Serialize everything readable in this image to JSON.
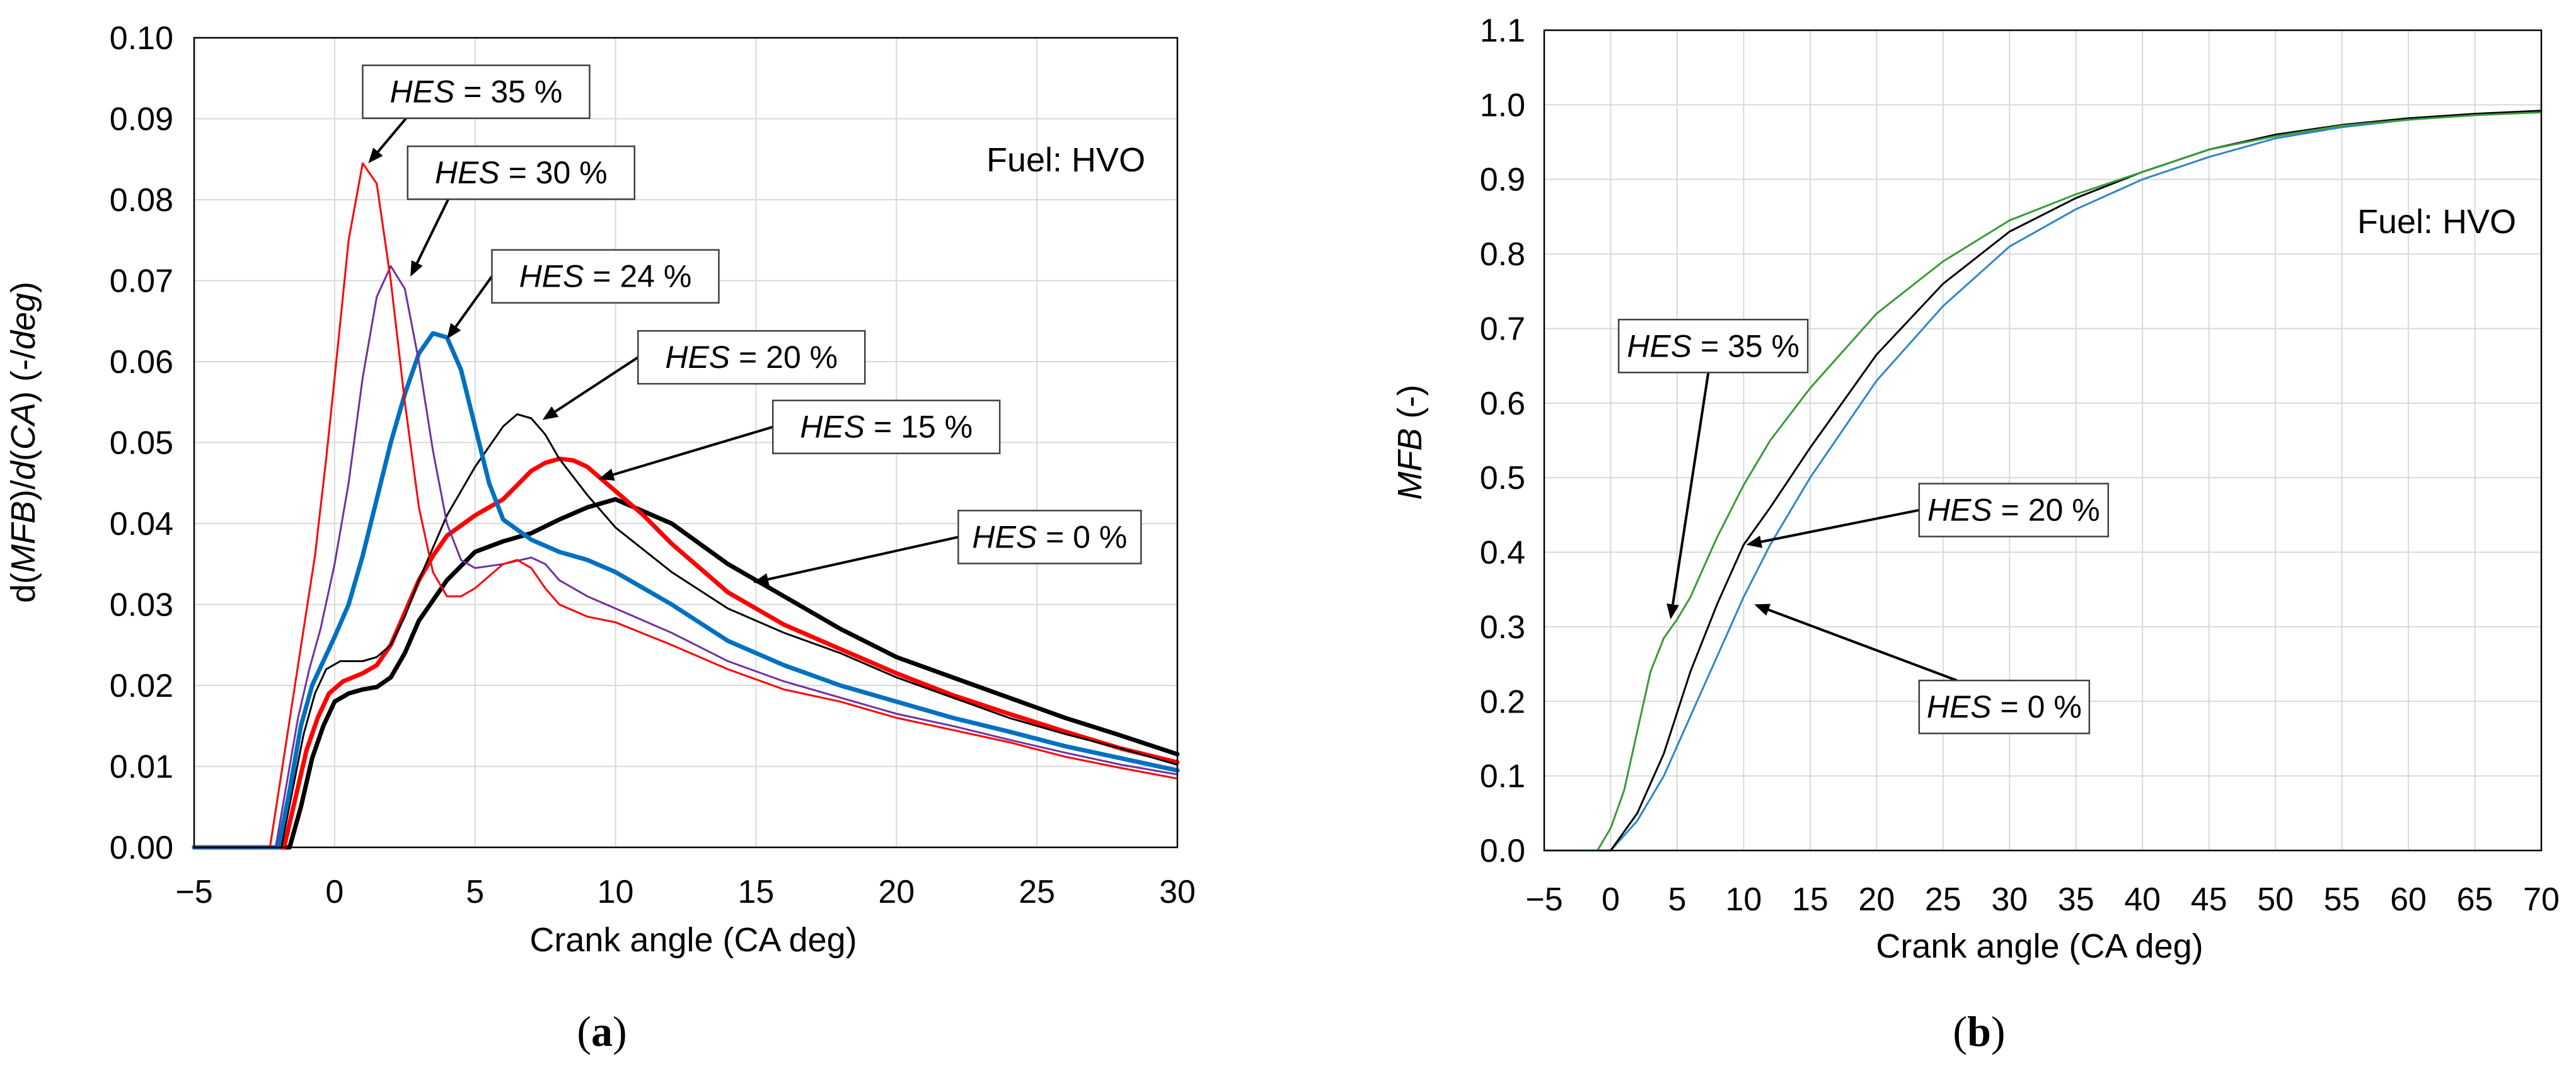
{
  "chart_data": [
    {
      "panel_label": "(a)",
      "type": "line",
      "xlabel": "Crank angle (CA deg)",
      "ylabel": "d(MFB)/d(CA)  (-/deg)",
      "xlim": [
        -5,
        30
      ],
      "ylim": [
        0,
        0.1
      ],
      "xticks": [
        -5,
        0,
        5,
        10,
        15,
        20,
        25,
        30
      ],
      "yticks": [
        0,
        0.01,
        0.02,
        0.03,
        0.04,
        0.05,
        0.06,
        0.07,
        0.08,
        0.09,
        0.1
      ],
      "ytick_labels": [
        "0.00",
        "0.01",
        "0.02",
        "0.03",
        "0.04",
        "0.05",
        "0.06",
        "0.07",
        "0.08",
        "0.09",
        "0.10"
      ],
      "xtick_labels": [
        "−5",
        "0",
        "5",
        "10",
        "15",
        "20",
        "25",
        "30"
      ],
      "text_note": "Fuel: HVO",
      "series": [
        {
          "name": "HES = 0 %",
          "color": "#000000",
          "width": 7,
          "x": [
            -5,
            -1.6,
            -1.2,
            -0.8,
            -0.4,
            0,
            0.5,
            1,
            1.5,
            2,
            2.5,
            3,
            4,
            5,
            6,
            7,
            8,
            9,
            10,
            12,
            14,
            16,
            18,
            20,
            22,
            24,
            26,
            28,
            30
          ],
          "y": [
            0,
            0,
            0.005,
            0.011,
            0.015,
            0.018,
            0.019,
            0.0195,
            0.0198,
            0.021,
            0.024,
            0.028,
            0.033,
            0.0365,
            0.0378,
            0.0388,
            0.0405,
            0.042,
            0.043,
            0.04,
            0.035,
            0.031,
            0.027,
            0.0235,
            0.021,
            0.0185,
            0.016,
            0.0138,
            0.0115
          ]
        },
        {
          "name": "HES = 15 %",
          "color": "#ff0000",
          "width": 7,
          "x": [
            -5,
            -1.8,
            -1.4,
            -1,
            -0.6,
            -0.2,
            0.3,
            1,
            1.5,
            2,
            2.5,
            3,
            3.5,
            4,
            5,
            6,
            7,
            7.5,
            8,
            8.5,
            9,
            10,
            11,
            12,
            14,
            16,
            18,
            20,
            22,
            24,
            26,
            28,
            30
          ],
          "y": [
            0,
            0,
            0.006,
            0.012,
            0.016,
            0.019,
            0.0205,
            0.0215,
            0.0225,
            0.025,
            0.029,
            0.033,
            0.036,
            0.0385,
            0.041,
            0.043,
            0.0465,
            0.0475,
            0.048,
            0.0478,
            0.047,
            0.044,
            0.041,
            0.0375,
            0.0315,
            0.0275,
            0.0245,
            0.0215,
            0.0188,
            0.0165,
            0.0143,
            0.0122,
            0.0105
          ]
        },
        {
          "name": "HES = 20 %",
          "color": "#000000",
          "width": 3,
          "x": [
            -5,
            -1.9,
            -1.5,
            -1.1,
            -0.7,
            -0.3,
            0.2,
            1,
            1.5,
            2,
            2.5,
            3,
            4,
            5,
            6,
            6.5,
            7,
            7.5,
            8,
            9,
            10,
            12,
            14,
            16,
            18,
            20,
            22,
            24,
            26,
            28,
            30
          ],
          "y": [
            0,
            0,
            0.007,
            0.014,
            0.019,
            0.022,
            0.023,
            0.023,
            0.0235,
            0.025,
            0.0285,
            0.033,
            0.041,
            0.047,
            0.052,
            0.0535,
            0.053,
            0.051,
            0.048,
            0.0435,
            0.0395,
            0.034,
            0.0295,
            0.0265,
            0.024,
            0.021,
            0.0185,
            0.016,
            0.014,
            0.0122,
            0.0102
          ]
        },
        {
          "name": "HES = 24 %",
          "color": "#0070c0",
          "width": 7,
          "x": [
            -5,
            -2,
            -1.6,
            -1.2,
            -0.8,
            -0.4,
            0,
            0.5,
            1,
            1.5,
            2,
            2.5,
            3,
            3.5,
            4,
            4.5,
            5,
            5.5,
            6,
            7,
            8,
            9,
            10,
            12,
            14,
            16,
            18,
            20,
            22,
            24,
            26,
            28,
            30
          ],
          "y": [
            0,
            0,
            0.007,
            0.015,
            0.02,
            0.023,
            0.026,
            0.03,
            0.036,
            0.043,
            0.05,
            0.056,
            0.061,
            0.0635,
            0.063,
            0.059,
            0.052,
            0.045,
            0.0405,
            0.038,
            0.0365,
            0.0355,
            0.034,
            0.03,
            0.0255,
            0.0225,
            0.02,
            0.018,
            0.016,
            0.0143,
            0.0125,
            0.011,
            0.0095
          ]
        },
        {
          "name": "HES = 30 %",
          "color": "#7030a0",
          "width": 3,
          "x": [
            -5,
            -2.1,
            -1.7,
            -1.3,
            -0.9,
            -0.5,
            0,
            0.5,
            1,
            1.5,
            2,
            2.5,
            3,
            3.5,
            4,
            4.5,
            5,
            6,
            7,
            7.5,
            8,
            9,
            10,
            12,
            14,
            16,
            18,
            20,
            22,
            24,
            26,
            28,
            30
          ],
          "y": [
            0,
            0,
            0.008,
            0.016,
            0.022,
            0.027,
            0.035,
            0.045,
            0.058,
            0.068,
            0.0718,
            0.069,
            0.06,
            0.049,
            0.04,
            0.0355,
            0.0345,
            0.035,
            0.0358,
            0.035,
            0.033,
            0.031,
            0.0295,
            0.0265,
            0.023,
            0.0205,
            0.0185,
            0.0165,
            0.015,
            0.0133,
            0.0117,
            0.0102,
            0.009
          ]
        },
        {
          "name": "HES = 35 %",
          "color": "#ff0000",
          "width": 3,
          "x": [
            -5,
            -2.3,
            -1.9,
            -1.5,
            -1.1,
            -0.7,
            -0.3,
            0,
            0.5,
            1,
            1.5,
            2,
            2.5,
            3,
            3.5,
            4,
            4.5,
            5,
            6,
            6.5,
            7,
            7.5,
            8,
            9,
            10,
            12,
            14,
            16,
            18,
            20,
            22,
            24,
            26,
            28,
            30
          ],
          "y": [
            0,
            0,
            0.009,
            0.018,
            0.027,
            0.036,
            0.048,
            0.058,
            0.075,
            0.0845,
            0.082,
            0.07,
            0.055,
            0.042,
            0.034,
            0.031,
            0.031,
            0.032,
            0.035,
            0.0355,
            0.0345,
            0.032,
            0.03,
            0.0285,
            0.0278,
            0.025,
            0.022,
            0.0195,
            0.018,
            0.016,
            0.0145,
            0.013,
            0.0112,
            0.0098,
            0.0085
          ]
        }
      ],
      "annotations": [
        {
          "text": "HES = 35 %",
          "label": "HES",
          "value": "= 35 %",
          "box": [
            1.0,
            0.0966
          ],
          "arrow_to": [
            1.2,
            0.0845
          ]
        },
        {
          "text": "HES = 30 %",
          "label": "HES",
          "value": "= 30 %",
          "box": [
            2.6,
            0.0866
          ],
          "arrow_to": [
            2.7,
            0.0705
          ]
        },
        {
          "text": "HES = 24 %",
          "label": "HES",
          "value": "= 24 %",
          "box": [
            5.6,
            0.0738
          ],
          "arrow_to": [
            4.0,
            0.0628
          ]
        },
        {
          "text": "HES = 20 %",
          "label": "HES",
          "value": "= 20 %",
          "box": [
            10.8,
            0.0638
          ],
          "arrow_to": [
            7.4,
            0.0528
          ]
        },
        {
          "text": "HES = 15 %",
          "label": "HES",
          "value": "= 15 %",
          "box": [
            15.6,
            0.0552
          ],
          "arrow_to": [
            9.4,
            0.0455
          ]
        },
        {
          "text": "HES = 0 %",
          "label": "HES",
          "value": "= 0 %",
          "box": [
            22.2,
            0.0416
          ],
          "arrow_to": [
            14.9,
            0.0327
          ]
        }
      ]
    },
    {
      "panel_label": "(b)",
      "type": "line",
      "xlabel": "Crank angle (CA deg)",
      "ylabel": "MFB  (-)",
      "xlim": [
        -5,
        70
      ],
      "ylim": [
        0,
        1.1
      ],
      "xticks": [
        -5,
        0,
        5,
        10,
        15,
        20,
        25,
        30,
        35,
        40,
        45,
        50,
        55,
        60,
        65,
        70
      ],
      "xtick_labels": [
        "−5",
        "0",
        "5",
        "10",
        "15",
        "20",
        "25",
        "30",
        "35",
        "40",
        "45",
        "50",
        "55",
        "60",
        "65",
        "70"
      ],
      "yticks": [
        0,
        0.1,
        0.2,
        0.3,
        0.4,
        0.5,
        0.6,
        0.7,
        0.8,
        0.9,
        1.0,
        1.1
      ],
      "ytick_labels": [
        "0.0",
        "0.1",
        "0.2",
        "0.3",
        "0.4",
        "0.5",
        "0.6",
        "0.7",
        "0.8",
        "0.9",
        "1.0",
        "1.1"
      ],
      "text_note": "Fuel: HVO",
      "series": [
        {
          "name": "HES = 0 %",
          "color": "#2e86c8",
          "width": 3,
          "x": [
            -5,
            0,
            2,
            4,
            6,
            8,
            10,
            12,
            15,
            20,
            25,
            30,
            35,
            40,
            45,
            50,
            55,
            60,
            65,
            70
          ],
          "y": [
            0,
            0,
            0.04,
            0.1,
            0.18,
            0.26,
            0.34,
            0.41,
            0.5,
            0.63,
            0.73,
            0.81,
            0.86,
            0.9,
            0.93,
            0.955,
            0.97,
            0.98,
            0.987,
            0.99
          ]
        },
        {
          "name": "HES = 20 %",
          "color": "#000000",
          "width": 3,
          "x": [
            -5,
            0,
            2,
            4,
            6,
            8,
            10,
            12,
            15,
            20,
            25,
            30,
            35,
            40,
            45,
            50,
            55,
            60,
            65,
            70
          ],
          "y": [
            0,
            0,
            0.05,
            0.13,
            0.24,
            0.33,
            0.41,
            0.46,
            0.54,
            0.665,
            0.76,
            0.83,
            0.875,
            0.91,
            0.94,
            0.96,
            0.973,
            0.982,
            0.988,
            0.992
          ]
        },
        {
          "name": "HES = 35 %",
          "color": "#3a9a3a",
          "width": 3,
          "x": [
            -5,
            -1,
            0,
            1,
            2,
            3,
            4,
            5,
            6,
            8,
            10,
            12,
            15,
            20,
            25,
            30,
            35,
            40,
            45,
            50,
            55,
            60,
            65,
            70
          ],
          "y": [
            0,
            0,
            0.03,
            0.08,
            0.16,
            0.24,
            0.285,
            0.31,
            0.34,
            0.42,
            0.49,
            0.55,
            0.62,
            0.72,
            0.79,
            0.845,
            0.88,
            0.91,
            0.94,
            0.958,
            0.972,
            0.98,
            0.986,
            0.99
          ]
        }
      ],
      "annotations": [
        {
          "text": "HES = 35 %",
          "label": "HES",
          "value": "= 35 %",
          "box": [
            0.6,
            0.712
          ],
          "arrow_to": [
            4.5,
            0.31
          ]
        },
        {
          "text": "HES = 20 %",
          "label": "HES",
          "value": "= 20 %",
          "box": [
            23.2,
            0.492
          ],
          "arrow_to": [
            10.2,
            0.41
          ]
        },
        {
          "text": "HES = 0 %",
          "label": "HES",
          "value": "= 0 %",
          "box": [
            23.2,
            0.228
          ],
          "arrow_to": [
            10.8,
            0.33
          ]
        }
      ]
    }
  ]
}
